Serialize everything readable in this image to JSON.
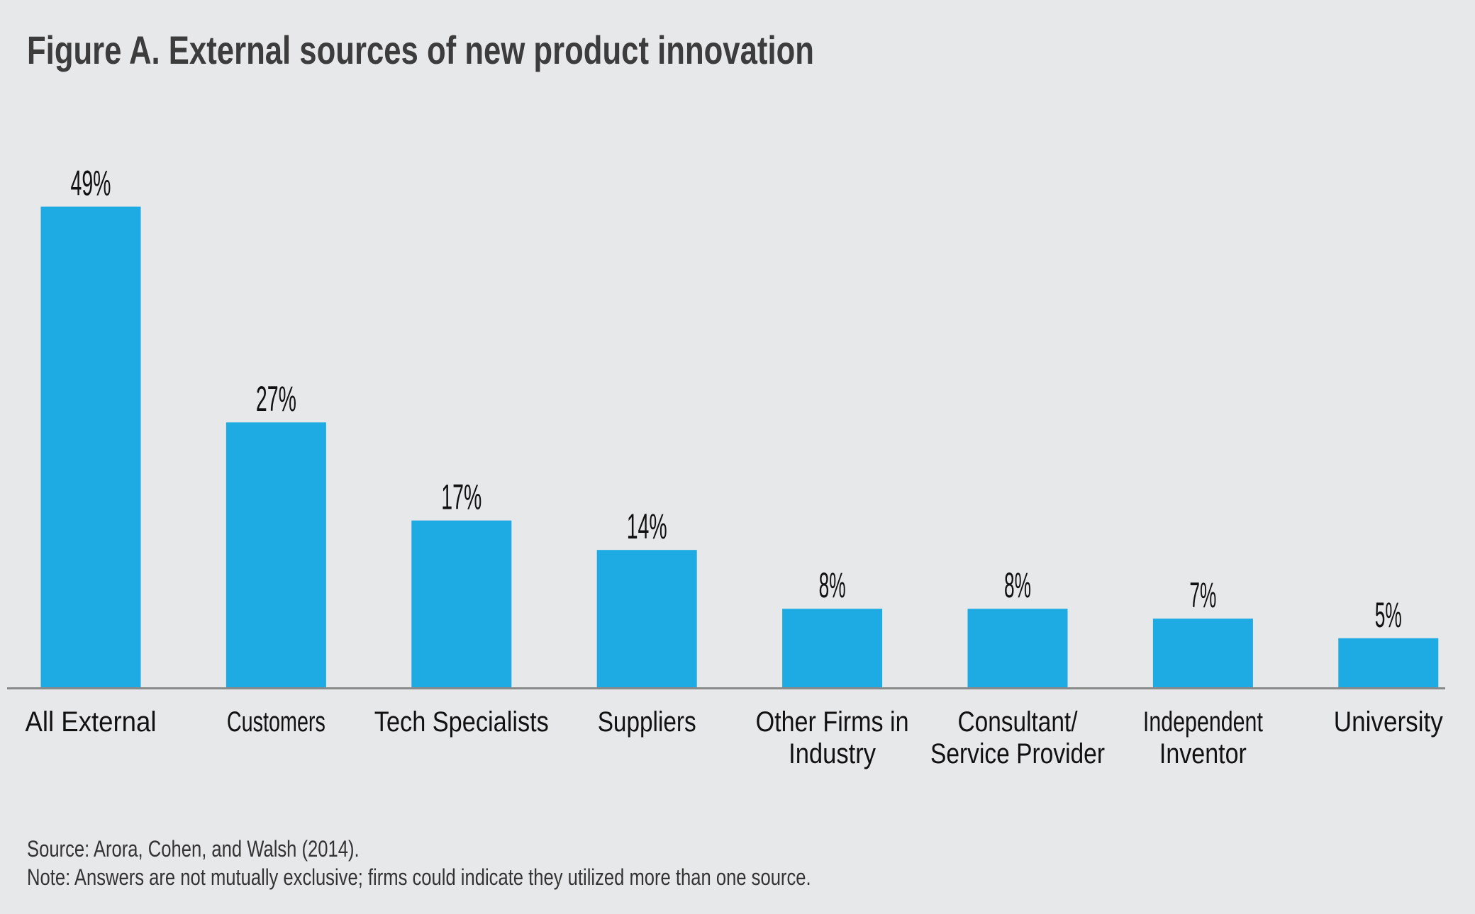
{
  "title": "Figure A. External sources of new product innovation",
  "footnotes": {
    "source": "Source: Arora, Cohen, and Walsh (2014).",
    "note": "Note: Answers are not mutually exclusive; firms could indicate they utilized more than one source."
  },
  "colors": {
    "bar": "#1eaae2",
    "axis": "#8a8a8a",
    "background": "#e7e8e9",
    "title": "#3c3c3c"
  },
  "chart_data": {
    "type": "bar",
    "title": "Figure A. External sources of new product innovation",
    "xlabel": "",
    "ylabel": "",
    "ylim": [
      0,
      55
    ],
    "grid": false,
    "categories": [
      [
        "All External"
      ],
      [
        "Customers"
      ],
      [
        "Tech Specialists"
      ],
      [
        "Suppliers"
      ],
      [
        "Other Firms in",
        "Industry"
      ],
      [
        "Consultant/",
        "Service Provider"
      ],
      [
        "Independent",
        "Inventor"
      ],
      [
        "University"
      ]
    ],
    "values": [
      49,
      27,
      17,
      14,
      8,
      8,
      7,
      5
    ],
    "value_labels": [
      "49%",
      "27%",
      "17%",
      "14%",
      "8%",
      "8%",
      "7%",
      "5%"
    ]
  }
}
